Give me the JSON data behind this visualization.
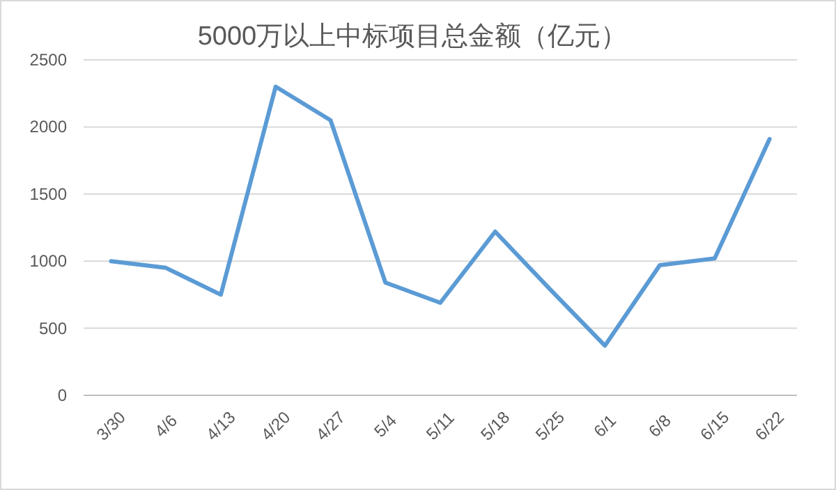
{
  "chart_data": {
    "type": "line",
    "title": "5000万以上中标项目总金额（亿元）",
    "categories": [
      "3/30",
      "4/6",
      "4/13",
      "4/20",
      "4/27",
      "5/4",
      "5/11",
      "5/18",
      "5/25",
      "6/1",
      "6/8",
      "6/15",
      "6/22"
    ],
    "series": [
      {
        "color": "#5b9bd5",
        "values": [
          1000,
          950,
          750,
          2300,
          2050,
          840,
          690,
          1220,
          790,
          370,
          970,
          1020,
          1910
        ]
      }
    ],
    "ylim": [
      0,
      2500
    ],
    "yticks": [
      0,
      500,
      1000,
      1500,
      2000,
      2500
    ],
    "grid": "y",
    "marker": "none",
    "line_style": "solid"
  }
}
